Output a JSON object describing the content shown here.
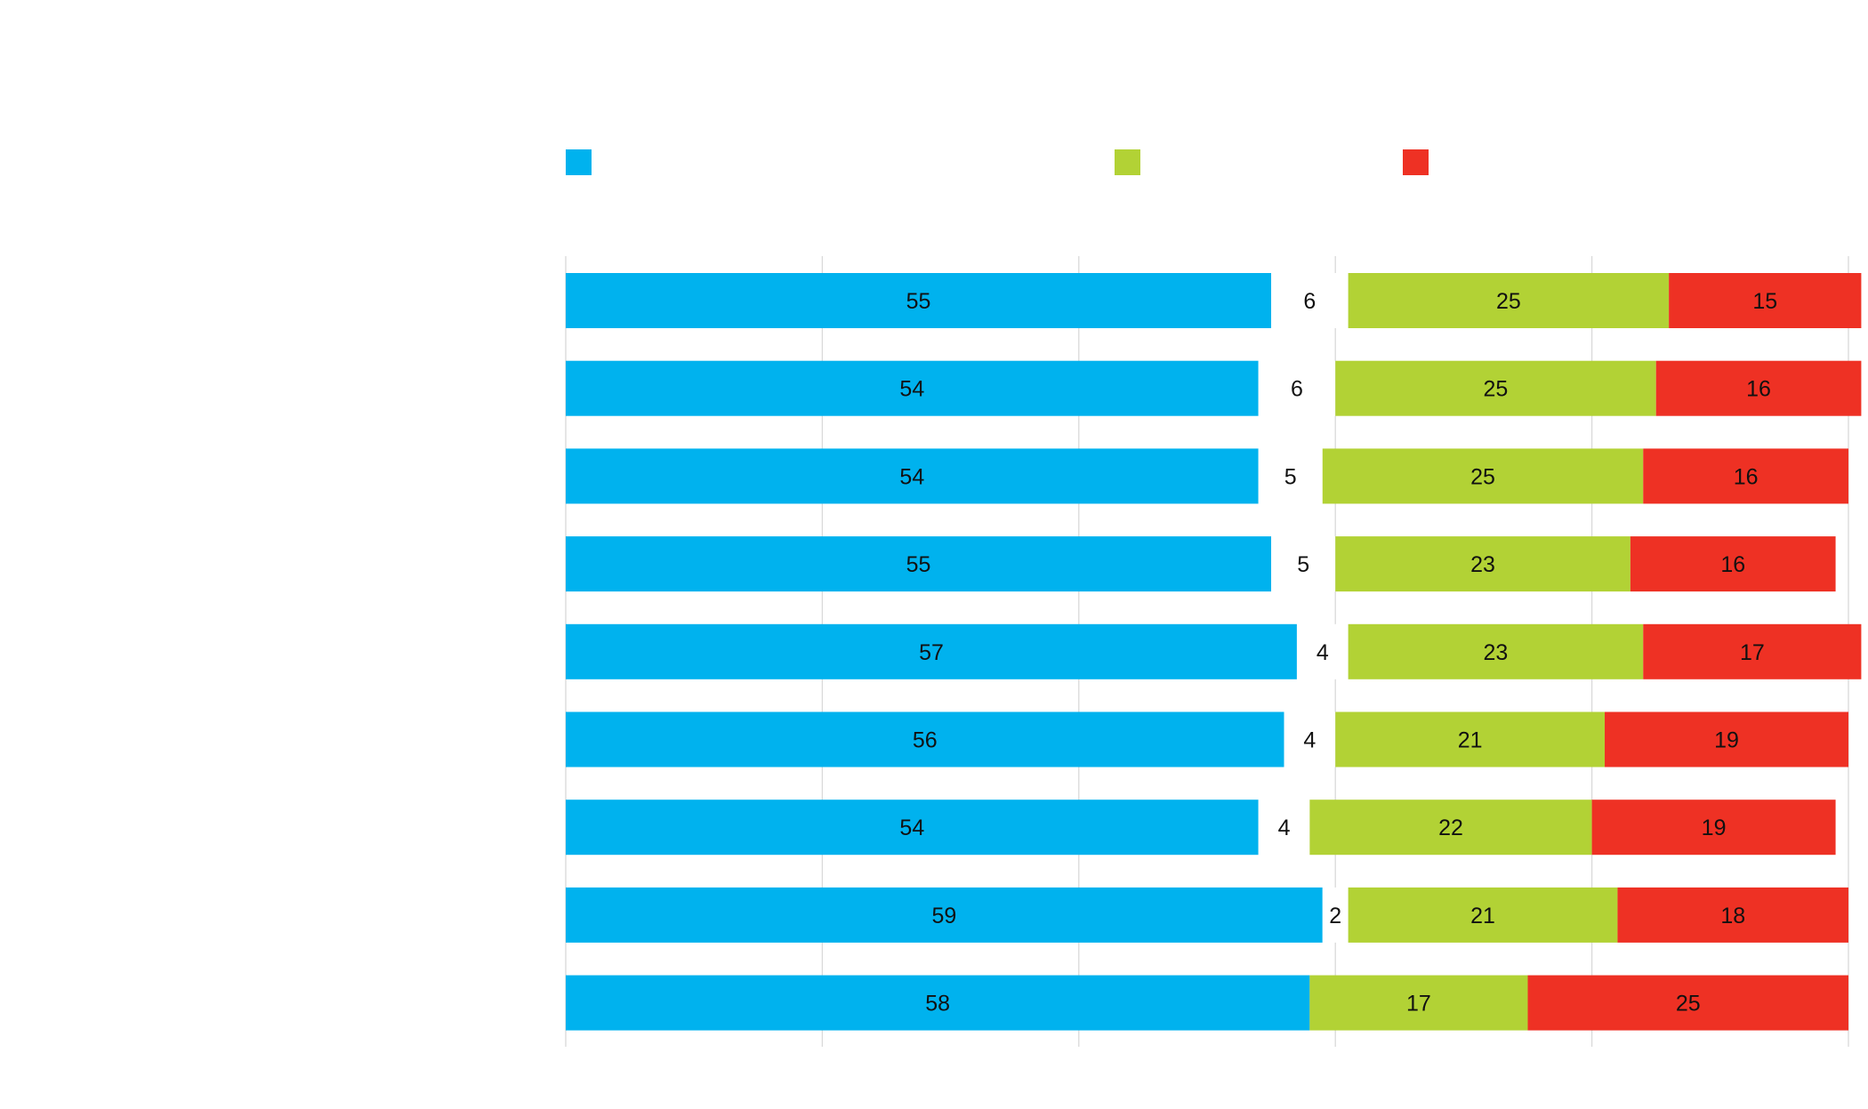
{
  "chart_data": {
    "type": "bar",
    "orientation": "horizontal",
    "stacked": true,
    "title": "",
    "xlabel": "",
    "ylabel": "",
    "xlim": [
      0,
      100
    ],
    "grid": true,
    "legend_position": "top",
    "categories": [
      "",
      "",
      "",
      "",
      "",
      "",
      "",
      "",
      ""
    ],
    "series": [
      {
        "color": "#00B2EE",
        "values": [
          55,
          54,
          54,
          55,
          57,
          56,
          54,
          59,
          58
        ]
      },
      {
        "color": "#FFFFFF",
        "values": [
          6,
          6,
          5,
          5,
          4,
          4,
          4,
          2,
          0
        ]
      },
      {
        "color": "#B2D235",
        "values": [
          25,
          25,
          25,
          23,
          23,
          21,
          22,
          21,
          17
        ]
      },
      {
        "color": "#EE3124",
        "values": [
          15,
          16,
          16,
          16,
          17,
          19,
          19,
          18,
          25
        ]
      }
    ],
    "legend_series": [
      0,
      2,
      3
    ]
  }
}
